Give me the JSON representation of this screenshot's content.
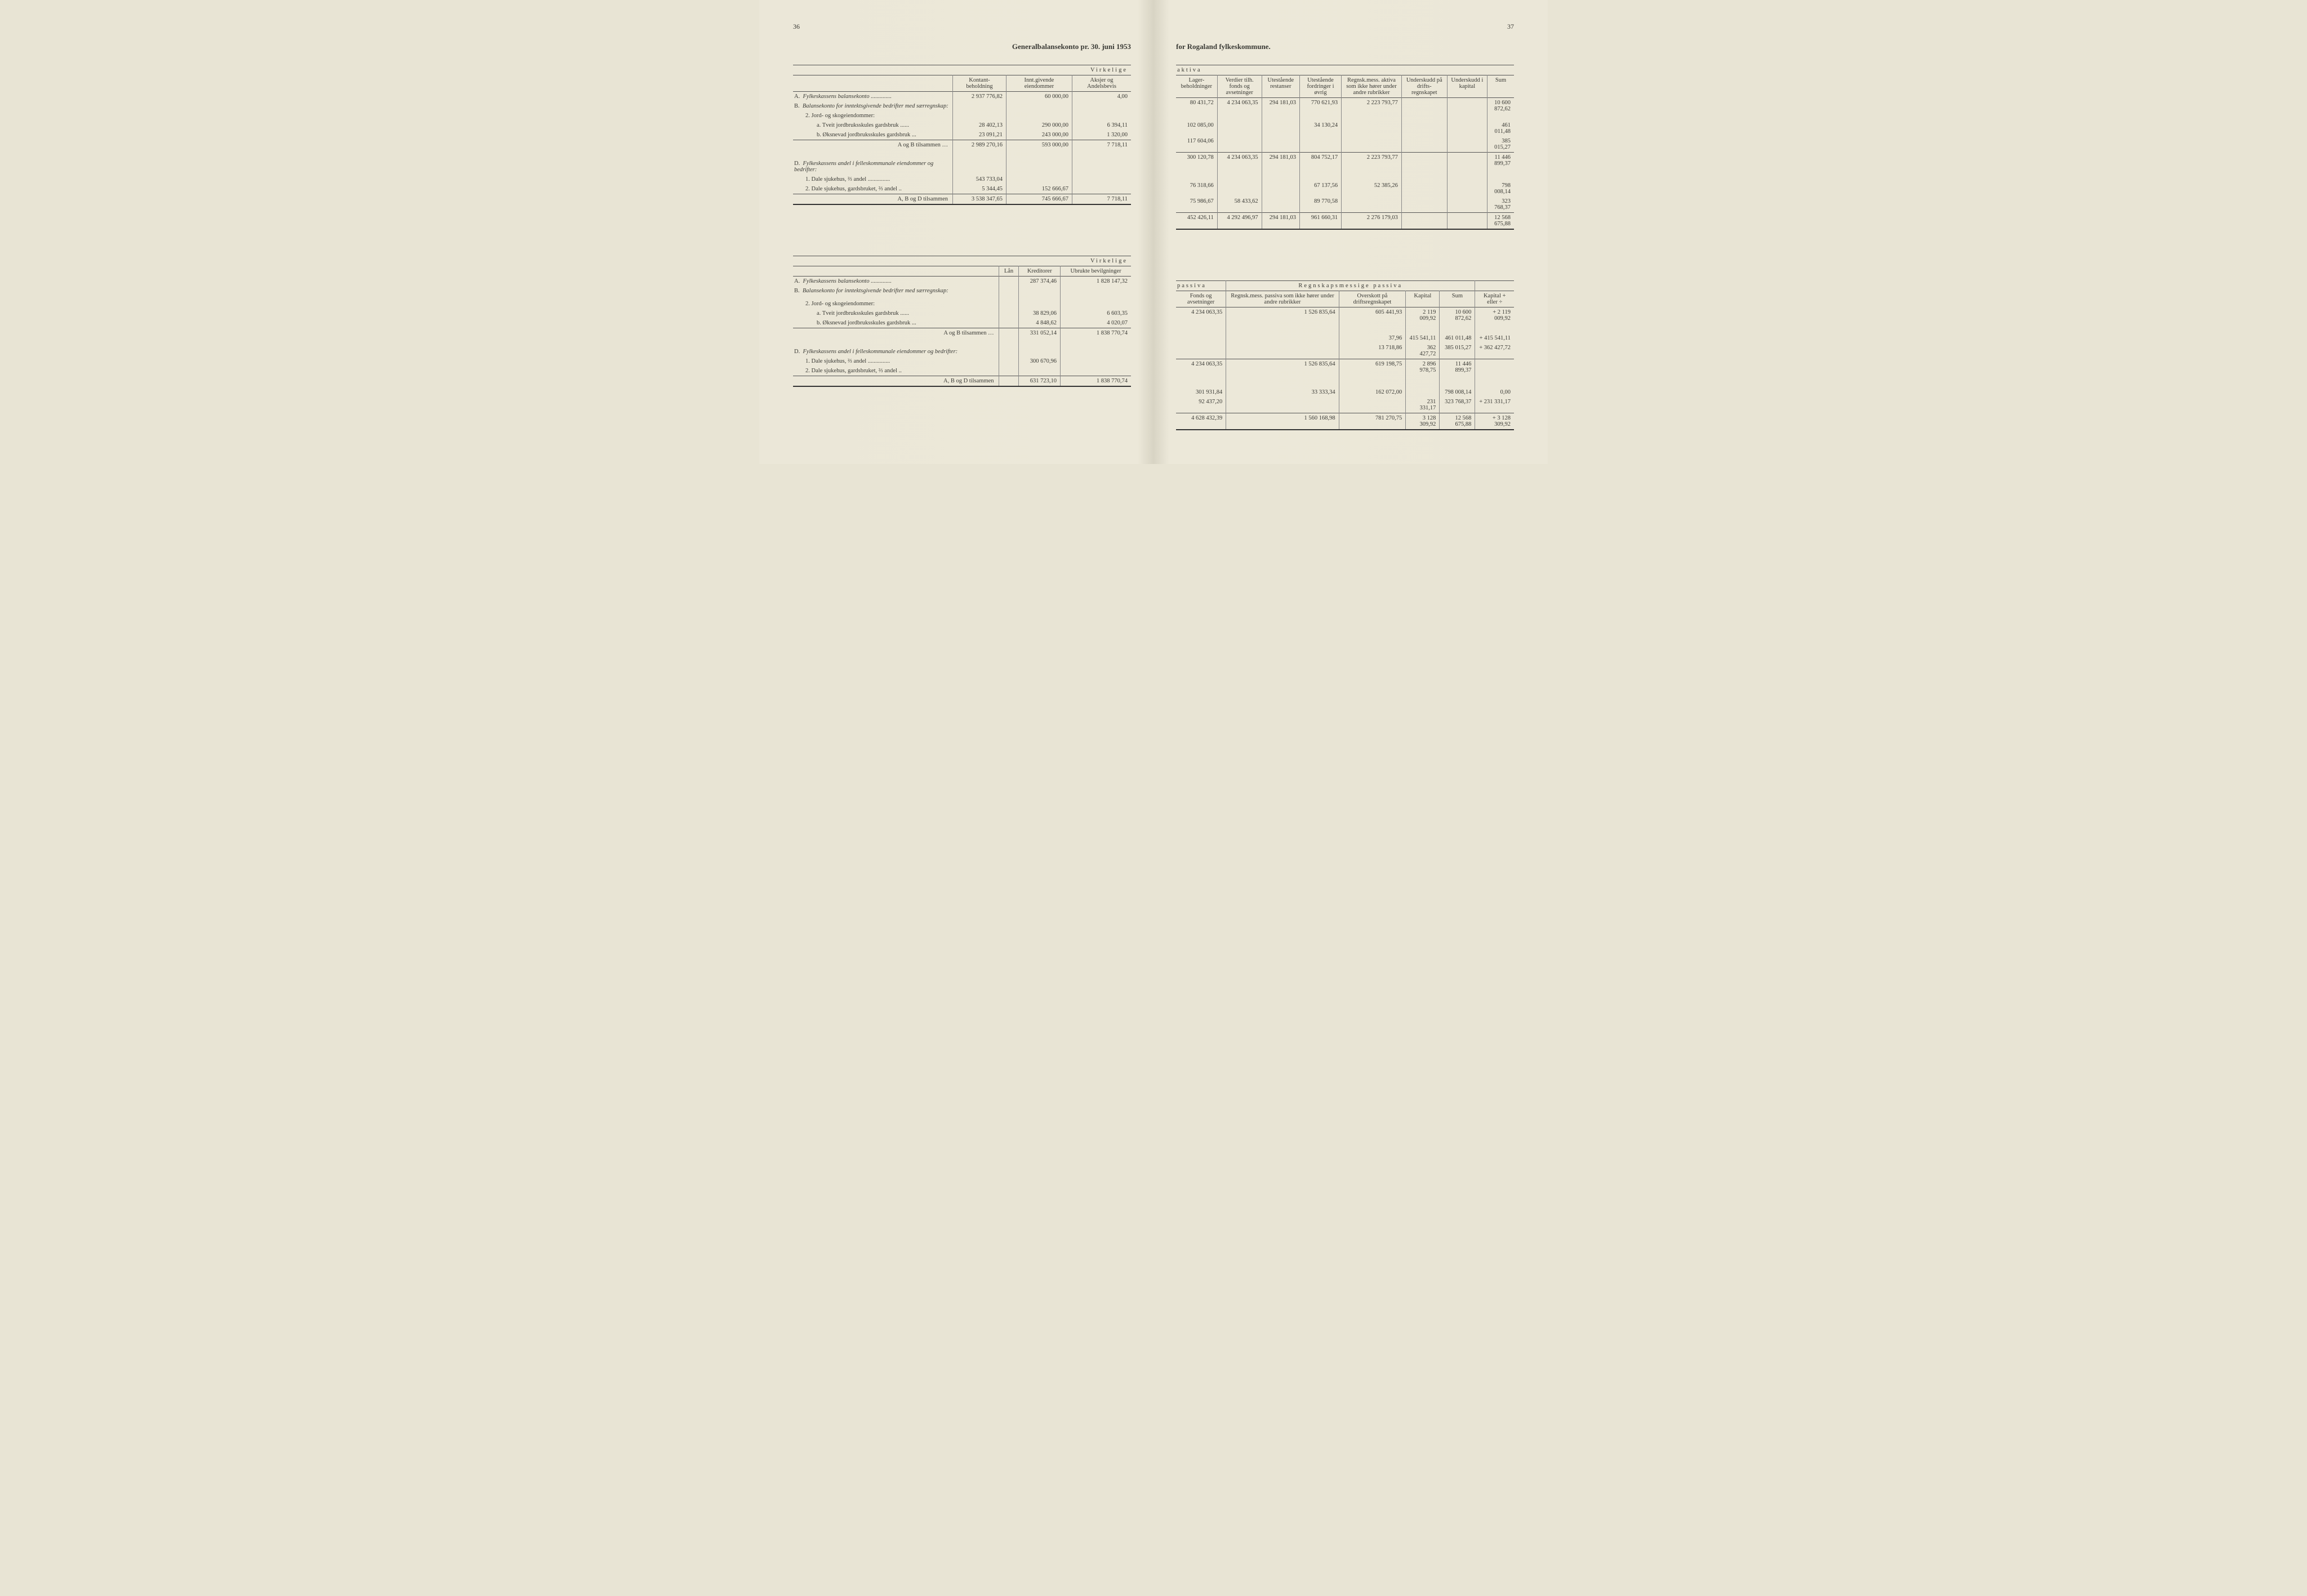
{
  "pageNumLeft": "36",
  "pageNumRight": "37",
  "titleLeft": "Generalbalansekonto pr. 30. juni 1953",
  "titleRight": "for Rogaland fylkeskommune.",
  "virkelige": "Virkelige",
  "aktiva": "aktiva",
  "passiva": "passiva",
  "regnskapsPassiva": "Regnskapsmessige passiva",
  "leftTop": {
    "headers": [
      "Kontant-beholdning",
      "Innt.givende eiendommer",
      "Aksjer og Andelsbevis"
    ],
    "rows": [
      {
        "label": "A.",
        "text": "Fylkeskassens balansekonto",
        "dots": true,
        "vals": [
          "2 937 776,82",
          "60 000,00",
          "4,00"
        ],
        "italic": true
      },
      {
        "label": "B.",
        "text": "Balansekonto for inntektsgivende bedrifter med særregnskap:",
        "italic": true,
        "vals": [
          "",
          "",
          ""
        ]
      },
      {
        "label": "",
        "text": "2. Jord- og skogeiendommer:",
        "indent": 1,
        "vals": [
          "",
          "",
          ""
        ]
      },
      {
        "label": "",
        "text": "a. Tveit jordbruksskules gardsbruk",
        "indent": 2,
        "dots": true,
        "vals": [
          "28 402,13",
          "290 000,00",
          "6 394,11"
        ]
      },
      {
        "label": "",
        "text": "b. Øksnevad jordbruksskules gardsbruk",
        "indent": 2,
        "dots": true,
        "vals": [
          "23 091,21",
          "243 000,00",
          "1 320,00"
        ]
      },
      {
        "label": "",
        "text": "A og B tilsammen  …",
        "right": true,
        "vals": [
          "2 989 270,16",
          "593 000,00",
          "7 718,11"
        ],
        "top": true
      },
      {
        "label": "D.",
        "text": "Fylkeskassens andel i felleskommunale eiendommer og bedrifter:",
        "italic": true,
        "vals": [
          "",
          "",
          ""
        ]
      },
      {
        "label": "",
        "text": "1. Dale sjukehus, ⅔ andel",
        "indent": 1,
        "dots": true,
        "vals": [
          "543 733,04",
          "",
          ""
        ]
      },
      {
        "label": "",
        "text": "2. Dale sjukehus, gardsbruket, ⅔ andel",
        "indent": 1,
        "dots": true,
        "vals": [
          "5 344,45",
          "152 666,67",
          ""
        ]
      },
      {
        "label": "",
        "text": "A, B og D tilsammen",
        "right": true,
        "vals": [
          "3 538 347,65",
          "745 666,67",
          "7 718,11"
        ],
        "top": true,
        "heavy": true
      }
    ]
  },
  "rightTop": {
    "headers": [
      "Lager-beholdninger",
      "Verdier tilh. fonds og avsetninger",
      "Utestående restanser",
      "Utestående fordringer i øvrig",
      "Regnsk.mess. aktiva som ikke hører under andre rubrikker",
      "Underskudd på drifts-regnskapet",
      "Underskudd i kapital",
      "Sum"
    ],
    "rows": [
      {
        "vals": [
          "80 431,72",
          "4 234 063,35",
          "294 181,03",
          "770 621,93",
          "2 223 793,77",
          "",
          "",
          "10 600 872,62"
        ]
      },
      {
        "vals": [
          "",
          "",
          "",
          "",
          "",
          "",
          "",
          ""
        ]
      },
      {
        "vals": [
          "",
          "",
          "",
          "",
          "",
          "",
          "",
          ""
        ]
      },
      {
        "vals": [
          "102 085,00",
          "",
          "",
          "34 130,24",
          "",
          "",
          "",
          "461 011,48"
        ]
      },
      {
        "vals": [
          "117 604,06",
          "",
          "",
          "",
          "",
          "",
          "",
          "385 015,27"
        ]
      },
      {
        "vals": [
          "300 120,78",
          "4 234 063,35",
          "294 181,03",
          "804 752,17",
          "2 223 793,77",
          "",
          "",
          "11 446 899,37"
        ],
        "top": true
      },
      {
        "vals": [
          "",
          "",
          "",
          "",
          "",
          "",
          "",
          ""
        ]
      },
      {
        "vals": [
          "76 318,66",
          "",
          "",
          "67 137,56",
          "52 385,26",
          "",
          "",
          "798 008,14"
        ]
      },
      {
        "vals": [
          "75 986,67",
          "58 433,62",
          "",
          "89 770,58",
          "",
          "",
          "",
          "323 768,37"
        ]
      },
      {
        "vals": [
          "452 426,11",
          "4 292 496,97",
          "294 181,03",
          "961 660,31",
          "2 276 179,03",
          "",
          "",
          "12 568 675,88"
        ],
        "top": true,
        "heavy": true
      }
    ]
  },
  "leftBottom": {
    "headers": [
      "Lån",
      "Kreditorer",
      "Ubrukte bevilgninger"
    ],
    "rows": [
      {
        "label": "A.",
        "text": "Fylkeskassens balansekonto",
        "dots": true,
        "italic": true,
        "vals": [
          "",
          "287 374,46",
          "1 828 147,32"
        ]
      },
      {
        "label": "B.",
        "text": "Balansekonto for inntektsgivende bedrifter med særregnskap:",
        "italic": true,
        "vals": [
          "",
          "",
          ""
        ]
      },
      {
        "label": "",
        "text": "",
        "vals": [
          "",
          "",
          ""
        ]
      },
      {
        "label": "",
        "text": "2. Jord- og skogeiendommer:",
        "indent": 1,
        "vals": [
          "",
          "",
          ""
        ]
      },
      {
        "label": "",
        "text": "a. Tveit jordbruksskules gardsbruk",
        "indent": 2,
        "dots": true,
        "vals": [
          "",
          "38 829,06",
          "6 603,35"
        ]
      },
      {
        "label": "",
        "text": "b. Øksnevad jordbruksskules gardsbruk",
        "indent": 2,
        "dots": true,
        "vals": [
          "",
          "4 848,62",
          "4 020,07"
        ]
      },
      {
        "label": "",
        "text": "A og B tilsammen  …",
        "right": true,
        "vals": [
          "",
          "331 052,14",
          "1 838 770,74"
        ],
        "top": true
      },
      {
        "label": "D.",
        "text": "Fylkeskassens andel i felleskommunale eiendommer og bedrifter:",
        "italic": true,
        "vals": [
          "",
          "",
          ""
        ]
      },
      {
        "label": "",
        "text": "1. Dale sjukehus, ⅔ andel",
        "indent": 1,
        "dots": true,
        "vals": [
          "",
          "300 670,96",
          ""
        ]
      },
      {
        "label": "",
        "text": "2. Dale sjukehus, gardsbruket, ⅔ andel",
        "indent": 1,
        "dots": true,
        "vals": [
          "",
          "",
          ""
        ]
      },
      {
        "label": "",
        "text": "A, B og D tilsammen",
        "right": true,
        "vals": [
          "",
          "631 723,10",
          "1 838 770,74"
        ],
        "top": true,
        "heavy": true
      }
    ]
  },
  "rightBottom": {
    "headers": [
      "Fonds og avsetninger",
      "Regnsk.mess. passiva som ikke hører under andre rubrikker",
      "Overskott på driftsregnskapet",
      "Kapital",
      "Sum",
      "Kapital + eller ÷"
    ],
    "rows": [
      {
        "vals": [
          "4 234 063,35",
          "1 526 835,64",
          "605 441,93",
          "2 119 009,92",
          "10 600 872,62",
          "+  2 119 009,92"
        ]
      },
      {
        "vals": [
          "",
          "",
          "",
          "",
          "",
          ""
        ]
      },
      {
        "vals": [
          "",
          "",
          "",
          "",
          "",
          ""
        ]
      },
      {
        "vals": [
          "",
          "",
          "",
          "",
          "",
          ""
        ]
      },
      {
        "vals": [
          "",
          "",
          "37,96",
          "415 541,11",
          "461 011,48",
          "+     415 541,11"
        ]
      },
      {
        "vals": [
          "",
          "",
          "13 718,86",
          "362 427,72",
          "385 015,27",
          "+     362 427,72"
        ]
      },
      {
        "vals": [
          "4 234 063,35",
          "1 526 835,64",
          "619 198,75",
          "2 896 978,75",
          "11 446 899,37",
          ""
        ],
        "top": true
      },
      {
        "vals": [
          "",
          "",
          "",
          "",
          "",
          ""
        ]
      },
      {
        "vals": [
          "301 931,84",
          "33 333,34",
          "162 072,00",
          "",
          "798 008,14",
          "0,00"
        ]
      },
      {
        "vals": [
          "92 437,20",
          "",
          "",
          "231 331,17",
          "323 768,37",
          "+     231 331,17"
        ]
      },
      {
        "vals": [
          "4 628 432,39",
          "1 560 168,98",
          "781 270,75",
          "3 128 309,92",
          "12 568 675,88",
          "+  3 128 309,92"
        ],
        "top": true,
        "heavy": true
      }
    ]
  }
}
